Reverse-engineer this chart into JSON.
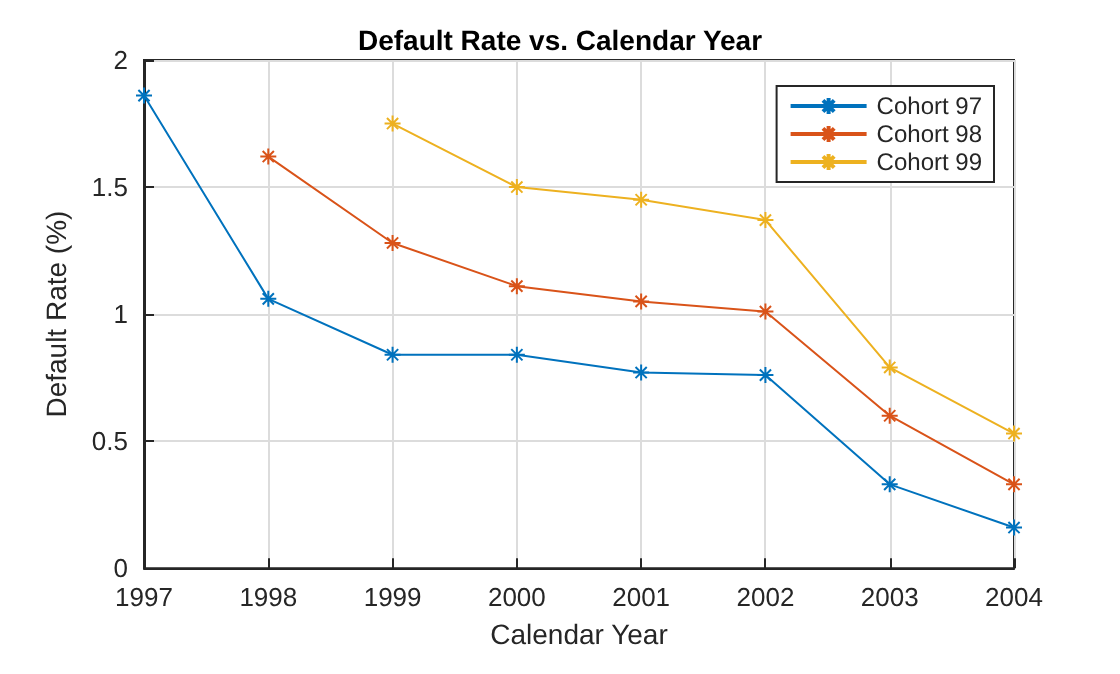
{
  "chart_data": {
    "type": "line",
    "title": "Default Rate vs. Calendar Year",
    "xlabel": "Calendar Year",
    "ylabel": "Default Rate (%)",
    "x": [
      1997,
      1998,
      1999,
      2000,
      2001,
      2002,
      2003,
      2004
    ],
    "series": [
      {
        "name": "Cohort 97",
        "color": "#0072bd",
        "values": [
          1.86,
          1.06,
          0.84,
          0.84,
          0.77,
          0.76,
          0.33,
          0.16
        ]
      },
      {
        "name": "Cohort 98",
        "color": "#d95319",
        "values": [
          null,
          1.62,
          1.28,
          1.11,
          1.05,
          1.01,
          0.6,
          0.33
        ]
      },
      {
        "name": "Cohort 99",
        "color": "#edb120",
        "values": [
          null,
          null,
          1.75,
          1.5,
          1.45,
          1.37,
          0.79,
          0.53
        ]
      }
    ],
    "xlim": [
      1997,
      2004
    ],
    "xticks": [
      1997,
      1998,
      1999,
      2000,
      2001,
      2002,
      2003,
      2004
    ],
    "ylim": [
      0,
      2
    ],
    "yticks": [
      0,
      0.5,
      1,
      1.5,
      2
    ],
    "grid": true,
    "legend": "top right",
    "marker": "cross",
    "line_style": "solid"
  }
}
